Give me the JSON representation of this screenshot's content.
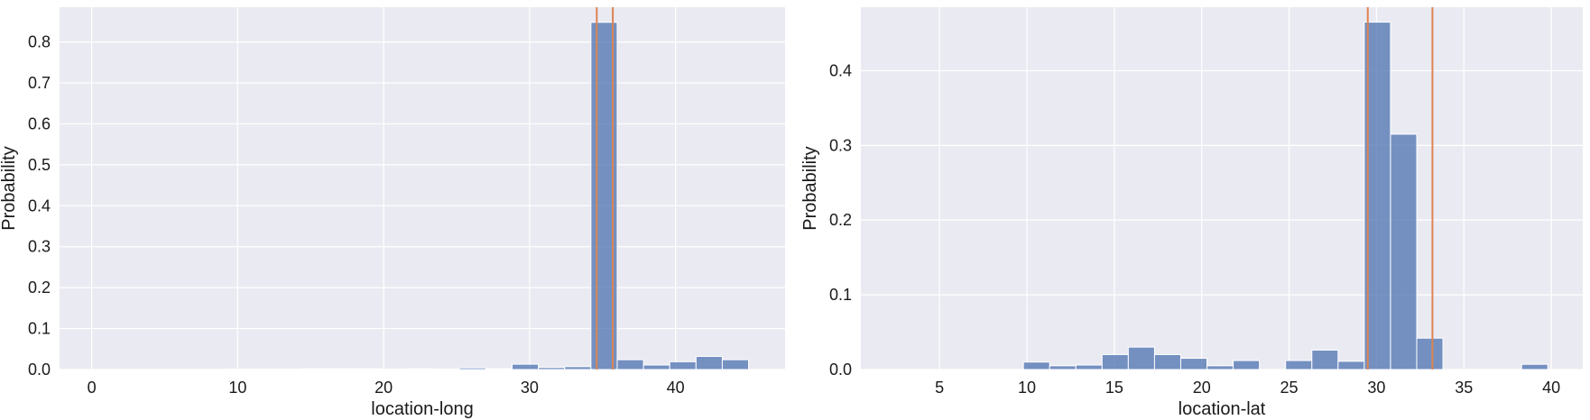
{
  "chart_data": [
    {
      "type": "bar",
      "xlabel": "location-long",
      "ylabel": "Probability",
      "xlim": [
        -2.2,
        47.5
      ],
      "ylim": [
        0,
        0.885
      ],
      "xticks": [
        0,
        10,
        20,
        30,
        40
      ],
      "yticks": [
        0.0,
        0.1,
        0.2,
        0.3,
        0.4,
        0.5,
        0.6,
        0.7,
        0.8
      ],
      "ytick_labels": [
        "0.0",
        "0.1",
        "0.2",
        "0.3",
        "0.4",
        "0.5",
        "0.6",
        "0.7",
        "0.8"
      ],
      "grid": true,
      "bar_color": "#4C72B0",
      "vline_color": "#DD8452",
      "bins": [
        {
          "x0": 0.0,
          "x1": 1.8,
          "value": 0.0
        },
        {
          "x0": 1.8,
          "x1": 3.6,
          "value": 0.0
        },
        {
          "x0": 3.6,
          "x1": 5.4,
          "value": 0.0
        },
        {
          "x0": 5.4,
          "x1": 7.2,
          "value": 0.0
        },
        {
          "x0": 7.2,
          "x1": 9.0,
          "value": 0.0
        },
        {
          "x0": 9.0,
          "x1": 10.8,
          "value": 0.001
        },
        {
          "x0": 10.8,
          "x1": 12.6,
          "value": 0.001
        },
        {
          "x0": 12.6,
          "x1": 14.4,
          "value": 0.001
        },
        {
          "x0": 14.4,
          "x1": 16.2,
          "value": 0.002
        },
        {
          "x0": 16.2,
          "x1": 18.0,
          "value": 0.002
        },
        {
          "x0": 18.0,
          "x1": 19.8,
          "value": 0.002
        },
        {
          "x0": 19.8,
          "x1": 21.6,
          "value": 0.001
        },
        {
          "x0": 21.6,
          "x1": 23.4,
          "value": 0.002
        },
        {
          "x0": 23.4,
          "x1": 25.2,
          "value": 0.001
        },
        {
          "x0": 25.2,
          "x1": 27.0,
          "value": 0.004
        },
        {
          "x0": 27.0,
          "x1": 28.8,
          "value": 0.002
        },
        {
          "x0": 28.8,
          "x1": 30.6,
          "value": 0.013
        },
        {
          "x0": 30.6,
          "x1": 32.4,
          "value": 0.005
        },
        {
          "x0": 32.4,
          "x1": 34.2,
          "value": 0.007
        },
        {
          "x0": 34.2,
          "x1": 36.0,
          "value": 0.848
        },
        {
          "x0": 36.0,
          "x1": 37.8,
          "value": 0.024
        },
        {
          "x0": 37.8,
          "x1": 39.6,
          "value": 0.011
        },
        {
          "x0": 39.6,
          "x1": 41.4,
          "value": 0.019
        },
        {
          "x0": 41.4,
          "x1": 43.2,
          "value": 0.032
        },
        {
          "x0": 43.2,
          "x1": 45.0,
          "value": 0.024
        }
      ],
      "vlines": [
        34.6,
        35.7
      ]
    },
    {
      "type": "bar",
      "xlabel": "location-lat",
      "ylabel": "Probability",
      "xlim": [
        0.5,
        41.8
      ],
      "ylim": [
        0,
        0.485
      ],
      "xticks": [
        5,
        10,
        15,
        20,
        25,
        30,
        35,
        40
      ],
      "yticks": [
        0.0,
        0.1,
        0.2,
        0.3,
        0.4
      ],
      "ytick_labels": [
        "0.0",
        "0.1",
        "0.2",
        "0.3",
        "0.4"
      ],
      "grid": true,
      "bar_color": "#4C72B0",
      "vline_color": "#DD8452",
      "bins": [
        {
          "x0": 2.3,
          "x1": 3.8,
          "value": 0.0
        },
        {
          "x0": 3.8,
          "x1": 5.3,
          "value": 0.0
        },
        {
          "x0": 5.3,
          "x1": 6.8,
          "value": 0.0
        },
        {
          "x0": 6.8,
          "x1": 8.3,
          "value": 0.0
        },
        {
          "x0": 8.3,
          "x1": 9.8,
          "value": 0.0
        },
        {
          "x0": 9.8,
          "x1": 11.3,
          "value": 0.01
        },
        {
          "x0": 11.3,
          "x1": 12.8,
          "value": 0.005
        },
        {
          "x0": 12.8,
          "x1": 14.3,
          "value": 0.006
        },
        {
          "x0": 14.3,
          "x1": 15.8,
          "value": 0.02
        },
        {
          "x0": 15.8,
          "x1": 17.3,
          "value": 0.03
        },
        {
          "x0": 17.3,
          "x1": 18.8,
          "value": 0.02
        },
        {
          "x0": 18.8,
          "x1": 20.3,
          "value": 0.015
        },
        {
          "x0": 20.3,
          "x1": 21.8,
          "value": 0.005
        },
        {
          "x0": 21.8,
          "x1": 23.3,
          "value": 0.012
        },
        {
          "x0": 23.3,
          "x1": 24.8,
          "value": 0.0
        },
        {
          "x0": 24.8,
          "x1": 26.3,
          "value": 0.012
        },
        {
          "x0": 26.3,
          "x1": 27.8,
          "value": 0.026
        },
        {
          "x0": 27.8,
          "x1": 29.3,
          "value": 0.011
        },
        {
          "x0": 29.3,
          "x1": 30.8,
          "value": 0.465
        },
        {
          "x0": 30.8,
          "x1": 32.3,
          "value": 0.315
        },
        {
          "x0": 32.3,
          "x1": 33.8,
          "value": 0.042
        },
        {
          "x0": 33.8,
          "x1": 35.3,
          "value": 0.0
        },
        {
          "x0": 35.3,
          "x1": 36.8,
          "value": 0.0
        },
        {
          "x0": 36.8,
          "x1": 38.3,
          "value": 0.0
        },
        {
          "x0": 38.3,
          "x1": 39.8,
          "value": 0.007
        }
      ],
      "vlines": [
        29.5,
        33.2
      ]
    }
  ]
}
